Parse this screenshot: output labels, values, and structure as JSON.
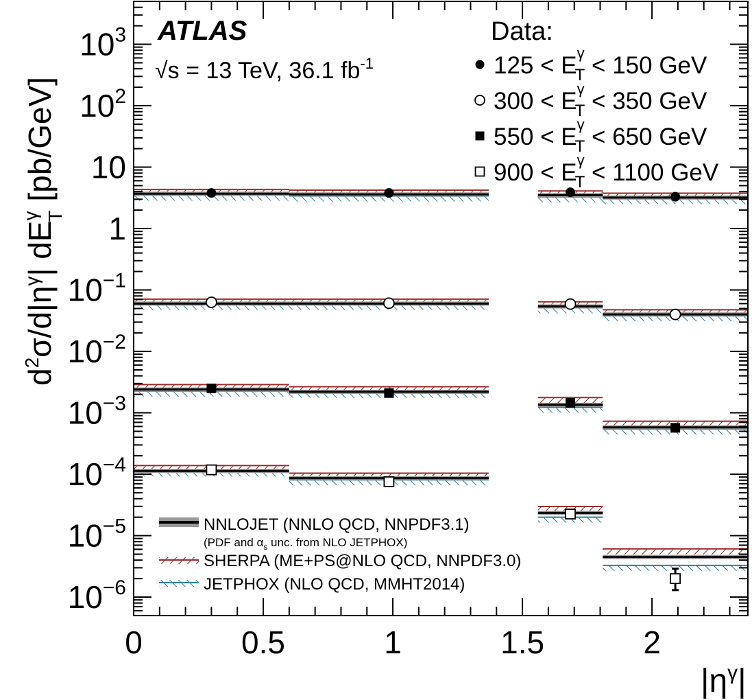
{
  "chart_data": {
    "type": "scatter",
    "title": "",
    "experiment": "ATLAS",
    "energy_label": "√s = 13 TeV, 36.1 fb",
    "lumi_exponent": "-1",
    "xlabel": "|η",
    "xlabel_sup": "γ",
    "ylabel": "d²σ/d|η^γ| dE_T^γ [pb/GeV]",
    "xlim": [
      0,
      2.37
    ],
    "ylim": [
      5e-07,
      5000
    ],
    "y_scale": "log",
    "x_ticks": [
      0,
      0.5,
      1,
      1.5,
      2
    ],
    "x_tick_labels": [
      "0",
      "0.5",
      "1",
      "1.5",
      "2"
    ],
    "y_ticks": [
      {
        "value": 1e-06,
        "base": "10",
        "exp": "−6"
      },
      {
        "value": 1e-05,
        "base": "10",
        "exp": "−5"
      },
      {
        "value": 0.0001,
        "base": "10",
        "exp": "−4"
      },
      {
        "value": 0.001,
        "base": "10",
        "exp": "−3"
      },
      {
        "value": 0.01,
        "base": "10",
        "exp": "−2"
      },
      {
        "value": 0.1,
        "base": "10",
        "exp": "−1"
      },
      {
        "value": 1,
        "base": "1",
        "exp": ""
      },
      {
        "value": 10,
        "base": "10",
        "exp": ""
      },
      {
        "value": 100,
        "base": "10",
        "exp": "2"
      },
      {
        "value": 1000,
        "base": "10",
        "exp": "3"
      }
    ],
    "bins": [
      {
        "lo": 0.0,
        "hi": 0.6,
        "center": 0.3
      },
      {
        "lo": 0.6,
        "hi": 1.37,
        "center": 0.985
      },
      {
        "lo": 1.56,
        "hi": 1.81,
        "center": 1.685
      },
      {
        "lo": 1.81,
        "hi": 2.37,
        "center": 2.09
      }
    ],
    "data_legend_title": "Data:",
    "series": [
      {
        "label_lo": "125",
        "label_hi": "150",
        "marker": "filled-circle",
        "data": [
          3.8,
          3.8,
          3.9,
          3.3
        ],
        "nnlojet": [
          3.7,
          3.6,
          3.5,
          3.2
        ],
        "sherpa": [
          3.9,
          3.8,
          3.7,
          3.4
        ],
        "jetphox": [
          3.4,
          3.3,
          3.2,
          3.0
        ]
      },
      {
        "label_lo": "300",
        "label_hi": "350",
        "marker": "open-circle",
        "data": [
          0.063,
          0.061,
          0.059,
          0.04
        ],
        "nnlojet": [
          0.06,
          0.06,
          0.054,
          0.04
        ],
        "sherpa": [
          0.064,
          0.064,
          0.058,
          0.043
        ],
        "jetphox": [
          0.057,
          0.057,
          0.05,
          0.037
        ]
      },
      {
        "label_lo": "550",
        "label_hi": "650",
        "marker": "filled-square",
        "data": [
          0.0025,
          0.0021,
          0.00145,
          0.00057
        ],
        "nnlojet": [
          0.0024,
          0.0022,
          0.00135,
          0.00058
        ],
        "sherpa": [
          0.0026,
          0.0024,
          0.0016,
          0.00066
        ],
        "jetphox": [
          0.0022,
          0.0021,
          0.0012,
          0.00053
        ]
      },
      {
        "label_lo": "900",
        "label_hi": "1100",
        "marker": "open-square",
        "data": [
          0.000118,
          7.55e-05,
          2.25e-05,
          2e-06
        ],
        "data_err_lo": [
          0,
          0,
          1.98e-05,
          1.3e-06
        ],
        "data_err_hi": [
          0,
          0,
          2.45e-05,
          2.9e-06
        ],
        "nnlojet": [
          0.000113,
          8.65e-05,
          2.35e-05,
          4.5e-06
        ],
        "sherpa": [
          0.000125,
          9.4e-05,
          2.7e-05,
          5.5e-06
        ],
        "jetphox": [
          0.00011,
          7.9e-05,
          1.95e-05,
          3.2e-06
        ]
      }
    ],
    "legend": {
      "nnlojet": "NNLOJET (NNLO QCD, NNPDF3.1)",
      "nnlojet_sub_a": "(PDF and α",
      "nnlojet_sub_s": "s",
      "nnlojet_sub_b": " unc. from NLO JETPHOX)",
      "sherpa": "SHERPA (ME+PS@NLO QCD, NNPDF3.0)",
      "jetphox": "JETPHOX (NLO QCD, MMHT2014)"
    },
    "colors": {
      "nnlojet": "#000000",
      "nnlojet_band": "#9a9a9a",
      "sherpa": "#9b2a2a",
      "jetphox": "#2e7ea3",
      "data": "#000000"
    }
  }
}
